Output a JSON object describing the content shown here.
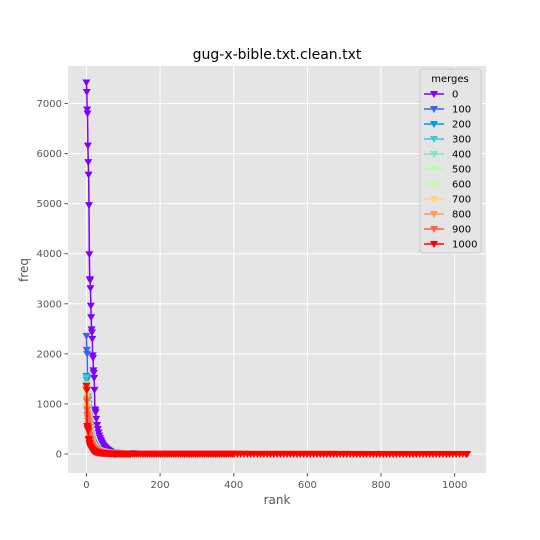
{
  "chart_data": {
    "type": "line",
    "title": "gug-x-bible.txt.clean.txt",
    "xlabel": "rank",
    "ylabel": "freq",
    "xlim": [
      -50,
      1085
    ],
    "ylim": [
      -380,
      7750
    ],
    "xticks": [
      0,
      200,
      400,
      600,
      800,
      1000
    ],
    "yticks": [
      0,
      1000,
      2000,
      3000,
      4000,
      5000,
      6000,
      7000
    ],
    "grid": true,
    "marker": "triangle-down",
    "legend": {
      "title": "merges",
      "placement": "top-right"
    },
    "series": [
      {
        "name": "0",
        "color": "#8000ff",
        "n": 80,
        "values": [
          7420,
          7230,
          6880,
          6800,
          6160,
          5830,
          5580,
          4970,
          3990,
          3490,
          3470,
          3310,
          2960,
          2730,
          2490,
          2430,
          2300,
          1970,
          1920,
          1670,
          1620,
          1520,
          1280,
          890,
          870,
          830,
          780,
          700,
          640,
          580,
          540,
          500,
          460,
          430,
          400,
          370,
          345,
          320,
          300,
          280,
          262,
          245,
          230,
          215,
          200,
          188,
          176,
          165,
          155,
          146,
          137,
          129,
          121,
          114,
          107,
          100,
          94,
          88,
          82,
          77,
          72,
          67,
          62,
          58,
          54,
          50,
          46,
          42,
          38,
          34,
          30,
          26,
          22,
          18,
          14,
          10,
          7,
          4,
          2,
          0
        ]
      },
      {
        "name": "100",
        "color": "#4062fa",
        "n": 180,
        "head": [
          2360,
          2080,
          2000,
          1520,
          1150,
          1080,
          1000
        ]
      },
      {
        "name": "200",
        "color": "#0098ee",
        "n": 280,
        "head": [
          1560,
          1480,
          1300,
          1100,
          1000,
          930,
          880
        ]
      },
      {
        "name": "300",
        "color": "#40c7dc",
        "n": 380,
        "head": [
          1530,
          1400,
          1200,
          1050,
          980,
          900,
          850
        ]
      },
      {
        "name": "400",
        "color": "#80eac3",
        "n": 480,
        "head": [
          1400,
          1300,
          1100,
          980,
          900,
          850,
          800
        ]
      },
      {
        "name": "500",
        "color": "#b2feb2",
        "n": 580,
        "head": [
          1350,
          1250,
          1050,
          950,
          880,
          820,
          760
        ]
      },
      {
        "name": "600",
        "color": "#c0ff9a",
        "n": 680,
        "head": [
          1330,
          1200,
          1000,
          900,
          840,
          780,
          720
        ]
      },
      {
        "name": "700",
        "color": "#ffd17c",
        "n": 780,
        "head": [
          1310,
          1150,
          960,
          860,
          800,
          740,
          680
        ]
      },
      {
        "name": "800",
        "color": "#ff9a5f",
        "n": 880,
        "head": [
          1300,
          1100,
          920,
          820,
          760,
          700,
          640
        ]
      },
      {
        "name": "900",
        "color": "#ff6240",
        "n": 980,
        "head": [
          1290,
          1050,
          880,
          780,
          720,
          660,
          600
        ]
      },
      {
        "name": "1000",
        "color": "#ff0000",
        "n": 1035,
        "head": [
          1360,
          1270,
          560,
          520,
          500,
          470,
          300
        ]
      }
    ]
  }
}
